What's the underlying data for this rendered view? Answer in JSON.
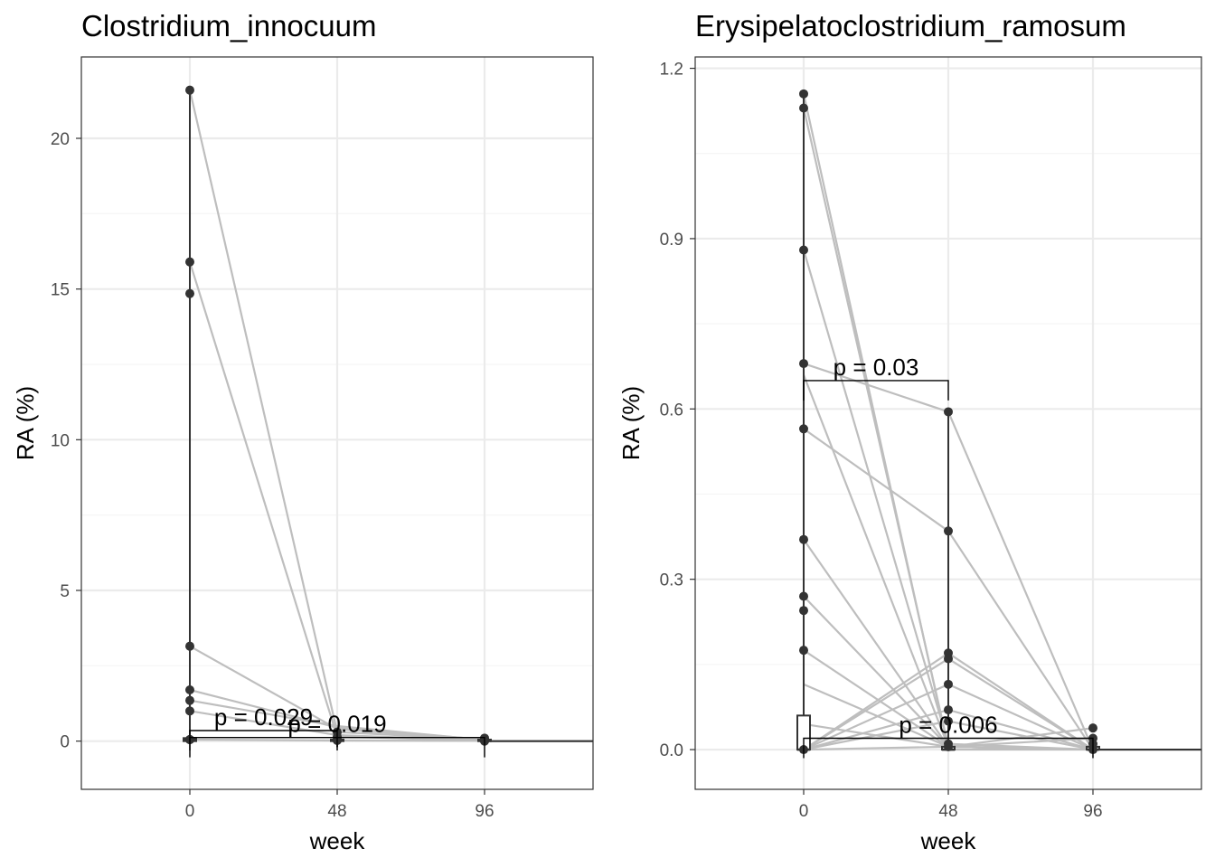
{
  "chart_data": [
    {
      "type": "box-scatter-paired",
      "title": "Clostridium_innocuum",
      "xlabel": "week",
      "ylabel": "RA (%)",
      "x_ticks": [
        "0",
        "48",
        "96"
      ],
      "x_categories": [
        0,
        48,
        96
      ],
      "y_ticks": [
        "0",
        "5",
        "10",
        "15",
        "20"
      ],
      "y_tick_values": [
        0,
        5,
        10,
        15,
        20
      ],
      "ylim": [
        -1.6,
        22.7
      ],
      "grid": true,
      "points": {
        "0": [
          21.6,
          15.9,
          14.85,
          3.15,
          1.7,
          1.35,
          1.0,
          0.05,
          0.05,
          0.05,
          0.05
        ],
        "48": [
          0.3,
          0.15,
          0.05,
          0.05,
          0.02
        ],
        "96": [
          0.1,
          0.05,
          0.02,
          0.01,
          0.0
        ]
      },
      "paired_lines": [
        [
          21.6,
          0.3,
          0.05
        ],
        [
          15.9,
          0.15,
          0.02
        ],
        [
          3.15,
          0.4,
          0.03
        ],
        [
          1.7,
          0.45,
          0.05
        ],
        [
          1.35,
          0.5,
          0.04
        ],
        [
          1.0,
          0.2,
          0.02
        ],
        [
          0.05,
          0.02,
          0.01
        ]
      ],
      "boxes": {
        "0": {
          "q1": 0.0,
          "median": 0.05,
          "q3": 0.1,
          "whisker_low": 0.0,
          "whisker_high": 21.6
        },
        "48": {
          "q1": 0.0,
          "median": 0.02,
          "q3": 0.05,
          "whisker_low": -0.2,
          "whisker_high": 0.4
        },
        "96": {
          "q1": 0.0,
          "median": 0.01,
          "q3": 0.05,
          "whisker_low": 0.0,
          "whisker_high": 0.1
        }
      },
      "brackets": [
        {
          "from": "0",
          "to": "48",
          "y": 0.35,
          "label": "p = 0.029"
        },
        {
          "from": "0",
          "to": "96",
          "y": 0.12,
          "label": "p = 0.019"
        }
      ]
    },
    {
      "type": "box-scatter-paired",
      "title": "Erysipelatoclostridium_ramosum",
      "xlabel": "week",
      "ylabel": "RA (%)",
      "x_ticks": [
        "0",
        "48",
        "96"
      ],
      "x_categories": [
        0,
        48,
        96
      ],
      "y_ticks": [
        "0.0",
        "0.3",
        "0.6",
        "0.9",
        "1.2"
      ],
      "y_tick_values": [
        0,
        0.3,
        0.6,
        0.9,
        1.2
      ],
      "ylim": [
        -0.07,
        1.22
      ],
      "grid": true,
      "points": {
        "0": [
          1.155,
          1.13,
          0.88,
          0.68,
          0.565,
          0.37,
          0.27,
          0.245,
          0.175,
          0.0
        ],
        "48": [
          0.595,
          0.385,
          0.17,
          0.16,
          0.115,
          0.07,
          0.05,
          0.01,
          0.005
        ],
        "96": [
          0.038,
          0.02,
          0.01,
          0.0
        ]
      },
      "paired_lines": [
        [
          1.155,
          0.0,
          0.0
        ],
        [
          1.13,
          0.005,
          0.0
        ],
        [
          0.88,
          0.01,
          0.0
        ],
        [
          0.68,
          0.595,
          0.0
        ],
        [
          0.66,
          0.005,
          0.0
        ],
        [
          0.565,
          0.385,
          0.0
        ],
        [
          0.37,
          0.005,
          0.038
        ],
        [
          0.27,
          0.005,
          0.0
        ],
        [
          0.175,
          0.005,
          0.0
        ],
        [
          0.115,
          0.005,
          0.02
        ],
        [
          0.045,
          0.005,
          0.0
        ],
        [
          0.0,
          0.17,
          0.0
        ],
        [
          0.0,
          0.16,
          0.0
        ],
        [
          0.0,
          0.115,
          0.0
        ],
        [
          0.0,
          0.07,
          0.0
        ],
        [
          0.0,
          0.05,
          0.0
        ],
        [
          0.0,
          0.005,
          0.0
        ]
      ],
      "boxes": {
        "0": {
          "q1": 0.0,
          "median": 0.0,
          "q3": 0.06,
          "whisker_low": 0.0,
          "whisker_high": 1.155
        },
        "48": {
          "q1": 0.0,
          "median": 0.0,
          "q3": 0.005,
          "whisker_low": 0.0,
          "whisker_high": 0.595
        },
        "96": {
          "q1": 0.0,
          "median": 0.0,
          "q3": 0.005,
          "whisker_low": 0.0,
          "whisker_high": 0.01
        }
      },
      "brackets": [
        {
          "from": "0",
          "to": "48",
          "y": 0.65,
          "label": "p = 0.03"
        },
        {
          "from": "0",
          "to": "96",
          "y": 0.02,
          "label": "p = 0.006"
        }
      ]
    }
  ],
  "colors": {
    "panel_border": "#333333",
    "grid_major": "#ebebeb",
    "grid_minor": "#f5f5f5",
    "point": "#333333",
    "paired_line": "#bebebe",
    "box": "#333333",
    "bracket": "#000000",
    "tick_text": "#4d4d4d"
  }
}
